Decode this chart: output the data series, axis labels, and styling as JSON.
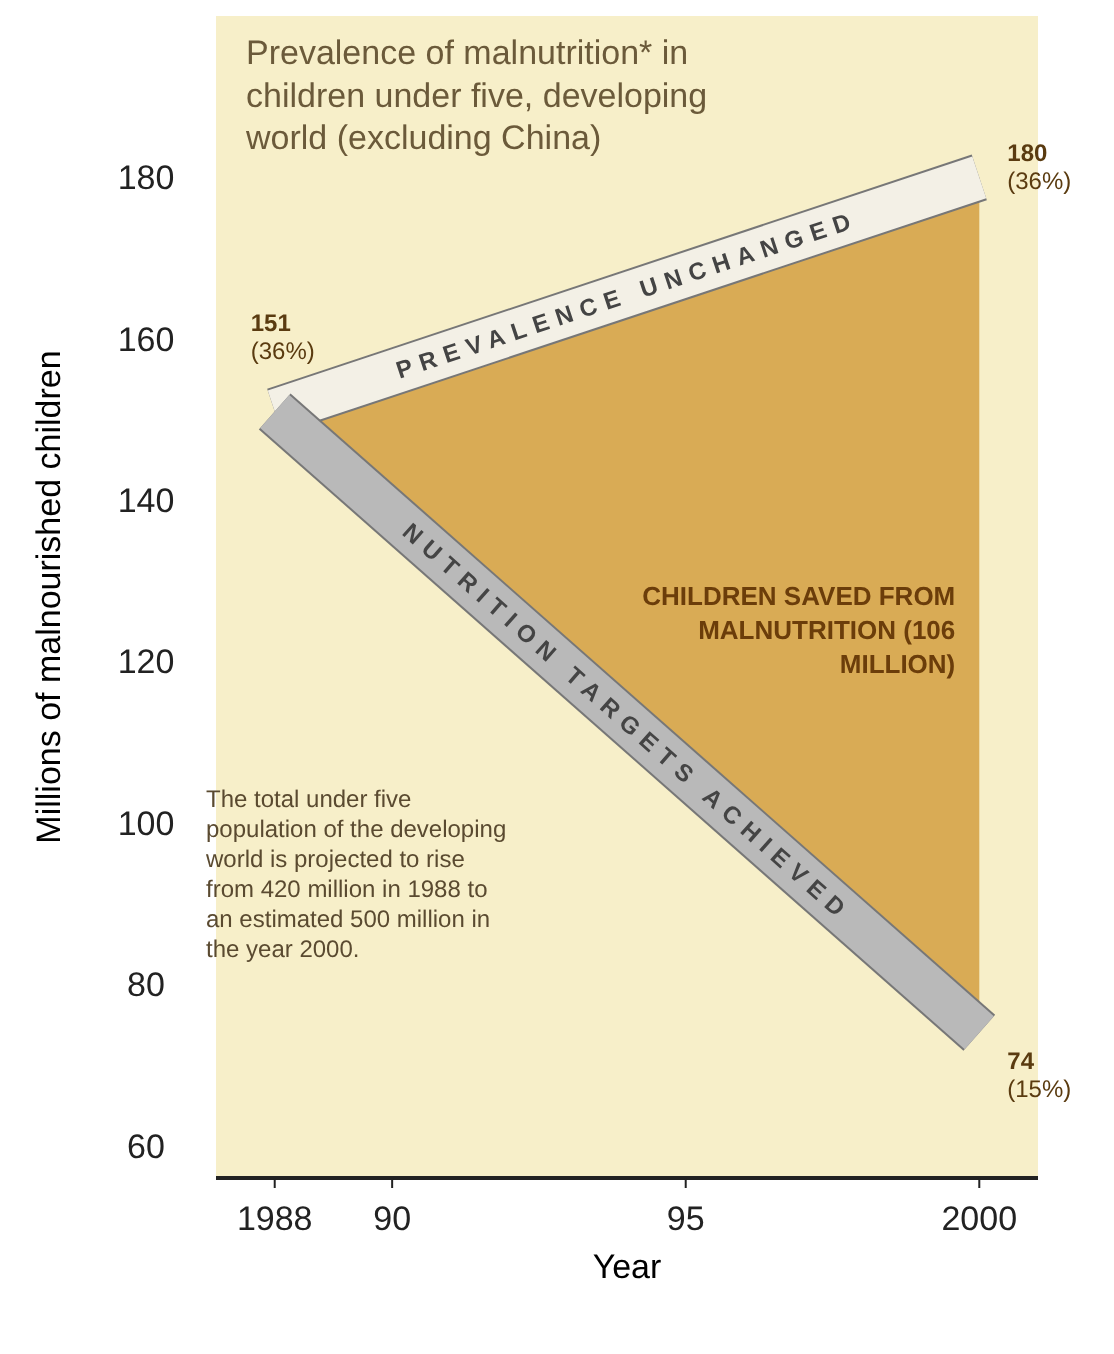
{
  "chart_data": {
    "type": "line",
    "title": "Prevalence of malnutrition* in children under five, developing world (excluding China)",
    "xlabel": "Year",
    "ylabel": "Millions of malnourished children",
    "x": [
      1988,
      2000
    ],
    "xlim": [
      1987,
      2001
    ],
    "xticks": [
      1988,
      {
        "value": 1990,
        "label": "90"
      },
      {
        "value": 1995,
        "label": "95"
      },
      2000
    ],
    "ylim": [
      56,
      200
    ],
    "yticks": [
      60,
      80,
      100,
      120,
      140,
      160,
      180
    ],
    "grid": false,
    "marker": "none",
    "series": [
      {
        "name": "PREVALENCE UNCHANGED",
        "color": "#f3f0e6",
        "values": [
          151,
          180
        ],
        "lower": [
          151,
          74
        ],
        "upper": [
          151,
          180
        ],
        "value_labels": [
          "151 (36%)",
          "180 (36%)"
        ]
      },
      {
        "name": "NUTRITION TARGETS ACHIEVED",
        "color": "#b9b9b9",
        "values": [
          151,
          74
        ],
        "value_labels": [
          null,
          "74 (15%)"
        ]
      }
    ],
    "annotations": [
      {
        "text": "CHILDREN SAVED FROM MALNUTRITION (106 MILLION)",
        "x": 2000,
        "y": 127
      },
      "The total under five population of the developing world is projected to rise from 420 million in 1988 to an estimated 500 million in the year 2000."
    ]
  }
}
